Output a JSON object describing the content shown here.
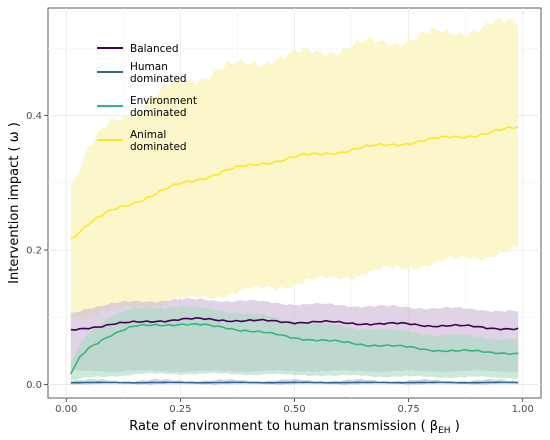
{
  "chart_data": {
    "type": "line",
    "xlabel": "Rate of environment to human transmission ( β",
    "xlabel_sub": "EH",
    "xlabel_end": " )",
    "ylabel": "Intervention impact ( ω )",
    "xlim": [
      -0.04,
      1.04
    ],
    "ylim": [
      -0.02,
      0.56
    ],
    "x_ticks": [
      0.0,
      0.25,
      0.5,
      0.75,
      1.0
    ],
    "x_tick_labels": [
      "0.00",
      "0.25",
      "0.50",
      "0.75",
      "1.00"
    ],
    "y_ticks": [
      0.0,
      0.2,
      0.4
    ],
    "y_tick_labels": [
      "0.0",
      "0.2",
      "0.4"
    ],
    "grid": true,
    "legend_position": "top-left",
    "series": [
      {
        "name": "Balanced",
        "color": "#440154",
        "fill": "#c9b6d3",
        "x": [
          0.01,
          0.05,
          0.1,
          0.15,
          0.2,
          0.25,
          0.3,
          0.35,
          0.4,
          0.45,
          0.5,
          0.55,
          0.6,
          0.65,
          0.7,
          0.75,
          0.8,
          0.85,
          0.9,
          0.95,
          0.99
        ],
        "values": [
          0.08,
          0.085,
          0.09,
          0.092,
          0.095,
          0.097,
          0.097,
          0.096,
          0.095,
          0.094,
          0.093,
          0.093,
          0.092,
          0.091,
          0.09,
          0.09,
          0.088,
          0.087,
          0.086,
          0.084,
          0.082
        ],
        "lower": [
          0.02,
          0.02,
          0.02,
          0.02,
          0.02,
          0.02,
          0.02,
          0.02,
          0.02,
          0.02,
          0.02,
          0.02,
          0.02,
          0.02,
          0.02,
          0.02,
          0.02,
          0.02,
          0.02,
          0.02,
          0.02
        ],
        "upper": [
          0.105,
          0.115,
          0.12,
          0.123,
          0.125,
          0.126,
          0.126,
          0.125,
          0.124,
          0.122,
          0.12,
          0.119,
          0.118,
          0.117,
          0.116,
          0.115,
          0.114,
          0.113,
          0.112,
          0.11,
          0.108
        ]
      },
      {
        "name": "Human\ndominated",
        "color": "#31688e",
        "fill": "#a7bfd1",
        "x": [
          0.01,
          0.1,
          0.2,
          0.3,
          0.4,
          0.5,
          0.6,
          0.7,
          0.8,
          0.9,
          0.99
        ],
        "values": [
          0.003,
          0.003,
          0.003,
          0.003,
          0.003,
          0.003,
          0.003,
          0.003,
          0.003,
          0.003,
          0.003
        ],
        "lower": [
          0.001,
          0.001,
          0.001,
          0.001,
          0.001,
          0.001,
          0.001,
          0.001,
          0.001,
          0.001,
          0.001
        ],
        "upper": [
          0.006,
          0.006,
          0.006,
          0.006,
          0.006,
          0.006,
          0.006,
          0.006,
          0.006,
          0.006,
          0.006
        ]
      },
      {
        "name": "Environment\ndominated",
        "color": "#35b779",
        "fill": "#a8dcc1",
        "x": [
          0.01,
          0.03,
          0.05,
          0.08,
          0.1,
          0.13,
          0.15,
          0.2,
          0.25,
          0.3,
          0.35,
          0.4,
          0.45,
          0.5,
          0.55,
          0.6,
          0.65,
          0.7,
          0.75,
          0.8,
          0.85,
          0.9,
          0.95,
          0.99
        ],
        "values": [
          0.015,
          0.04,
          0.055,
          0.068,
          0.075,
          0.082,
          0.086,
          0.089,
          0.09,
          0.088,
          0.085,
          0.08,
          0.075,
          0.07,
          0.066,
          0.063,
          0.06,
          0.058,
          0.055,
          0.052,
          0.05,
          0.049,
          0.048,
          0.046
        ],
        "lower": [
          0.005,
          0.008,
          0.01,
          0.012,
          0.013,
          0.014,
          0.015,
          0.016,
          0.016,
          0.016,
          0.016,
          0.015,
          0.015,
          0.014,
          0.014,
          0.013,
          0.013,
          0.012,
          0.012,
          0.011,
          0.011,
          0.011,
          0.01,
          0.01
        ],
        "upper": [
          0.03,
          0.06,
          0.08,
          0.095,
          0.102,
          0.108,
          0.112,
          0.115,
          0.116,
          0.113,
          0.11,
          0.105,
          0.1,
          0.095,
          0.09,
          0.087,
          0.084,
          0.081,
          0.078,
          0.075,
          0.073,
          0.071,
          0.069,
          0.067
        ]
      },
      {
        "name": "Animal\ndominated",
        "color": "#fde725",
        "fill": "#fcf6c2",
        "x": [
          0.01,
          0.05,
          0.1,
          0.15,
          0.2,
          0.25,
          0.3,
          0.35,
          0.4,
          0.45,
          0.5,
          0.55,
          0.6,
          0.65,
          0.7,
          0.75,
          0.8,
          0.85,
          0.9,
          0.95,
          0.99
        ],
        "values": [
          0.218,
          0.24,
          0.258,
          0.272,
          0.285,
          0.298,
          0.308,
          0.318,
          0.325,
          0.332,
          0.338,
          0.342,
          0.347,
          0.352,
          0.356,
          0.36,
          0.364,
          0.368,
          0.372,
          0.377,
          0.382
        ],
        "lower": [
          0.1,
          0.105,
          0.11,
          0.115,
          0.12,
          0.125,
          0.13,
          0.135,
          0.14,
          0.145,
          0.15,
          0.155,
          0.16,
          0.165,
          0.17,
          0.175,
          0.18,
          0.185,
          0.19,
          0.195,
          0.2
        ],
        "upper": [
          0.3,
          0.35,
          0.39,
          0.41,
          0.43,
          0.45,
          0.46,
          0.47,
          0.478,
          0.485,
          0.49,
          0.495,
          0.5,
          0.505,
          0.51,
          0.515,
          0.52,
          0.525,
          0.53,
          0.535,
          0.54
        ]
      }
    ]
  }
}
